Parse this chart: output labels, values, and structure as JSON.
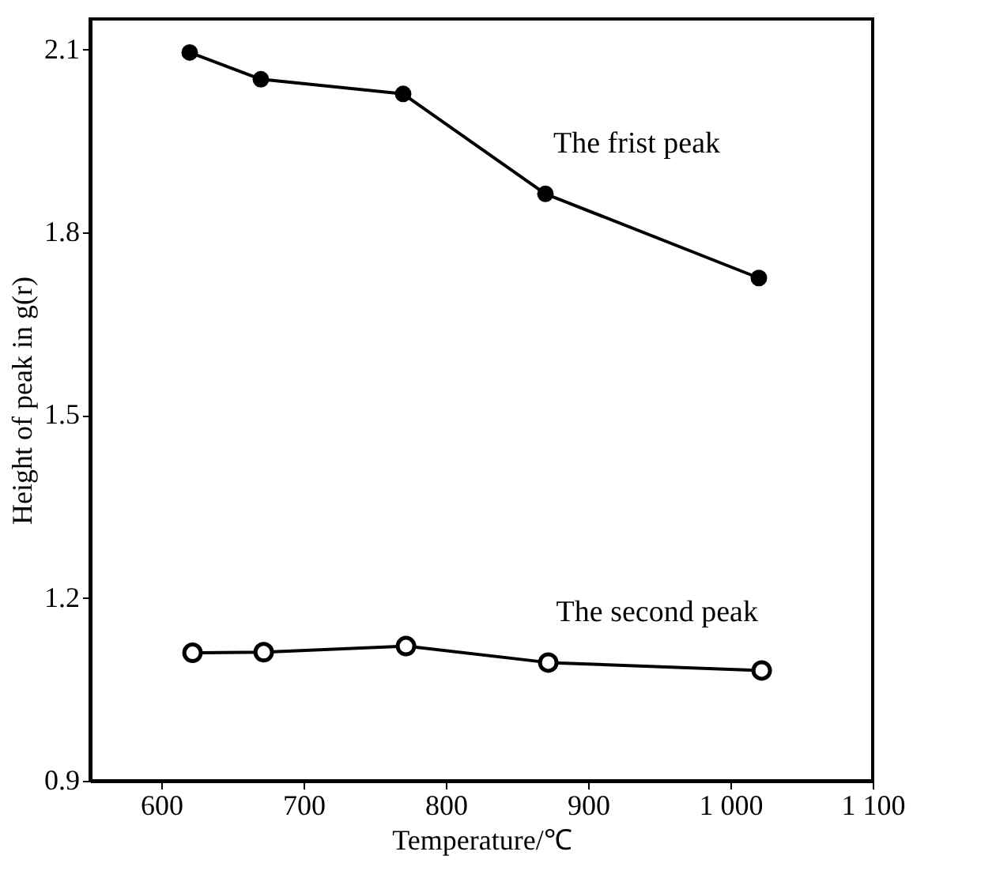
{
  "chart_data": {
    "type": "line",
    "xlabel": "Temperature/℃",
    "ylabel": "Height of peak in g(r)",
    "xlim": [
      550,
      1100
    ],
    "xticks": [
      600,
      700,
      800,
      900,
      {
        "value": 1000,
        "label": "1 000"
      },
      {
        "value": 1100,
        "label": "1 100"
      }
    ],
    "ylim": [
      0.9,
      2.15
    ],
    "yticks": [
      0.9,
      1.2,
      1.5,
      1.8,
      2.1
    ],
    "grid": false,
    "series": [
      {
        "name": "The frist peak",
        "color": "#000000",
        "marker": "circle",
        "line_style": "solid",
        "x": [
          620,
          670,
          770,
          870,
          1020
        ],
        "values": [
          2.095,
          2.051,
          2.027,
          1.863,
          1.725
        ]
      },
      {
        "name": "The second peak",
        "color": "#000000",
        "marker": "circle",
        "line_style": "solid",
        "x": [
          622,
          672,
          772,
          872,
          1022
        ],
        "values": [
          1.11,
          1.111,
          1.121,
          1.094,
          1.081
        ]
      }
    ]
  }
}
